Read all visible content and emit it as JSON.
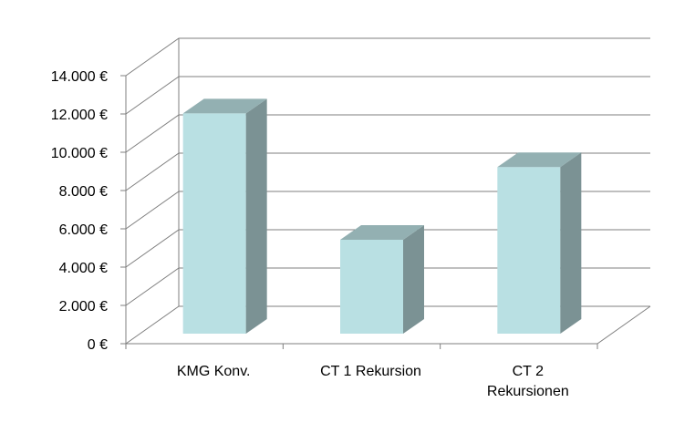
{
  "chart_data": {
    "type": "bar",
    "style": "3d-column",
    "categories": [
      [
        "KMG Konv."
      ],
      [
        "CT 1 Rekursion"
      ],
      [
        "CT 2",
        "Rekursionen"
      ]
    ],
    "values": [
      12600,
      6000,
      9800
    ],
    "ylim": [
      0,
      14000
    ],
    "yticks": [
      "0 €",
      "2.000 €",
      "4.000 €",
      "6.000 €",
      "8.000 €",
      "10.000 €",
      "12.000 €",
      "14.000 €"
    ],
    "grid": true,
    "legend": "none",
    "colors": {
      "bar_front": "#b9e0e3",
      "bar_side": "#7b9294",
      "bar_top": "#93b0b2",
      "grid": "#7f7f7f"
    }
  }
}
